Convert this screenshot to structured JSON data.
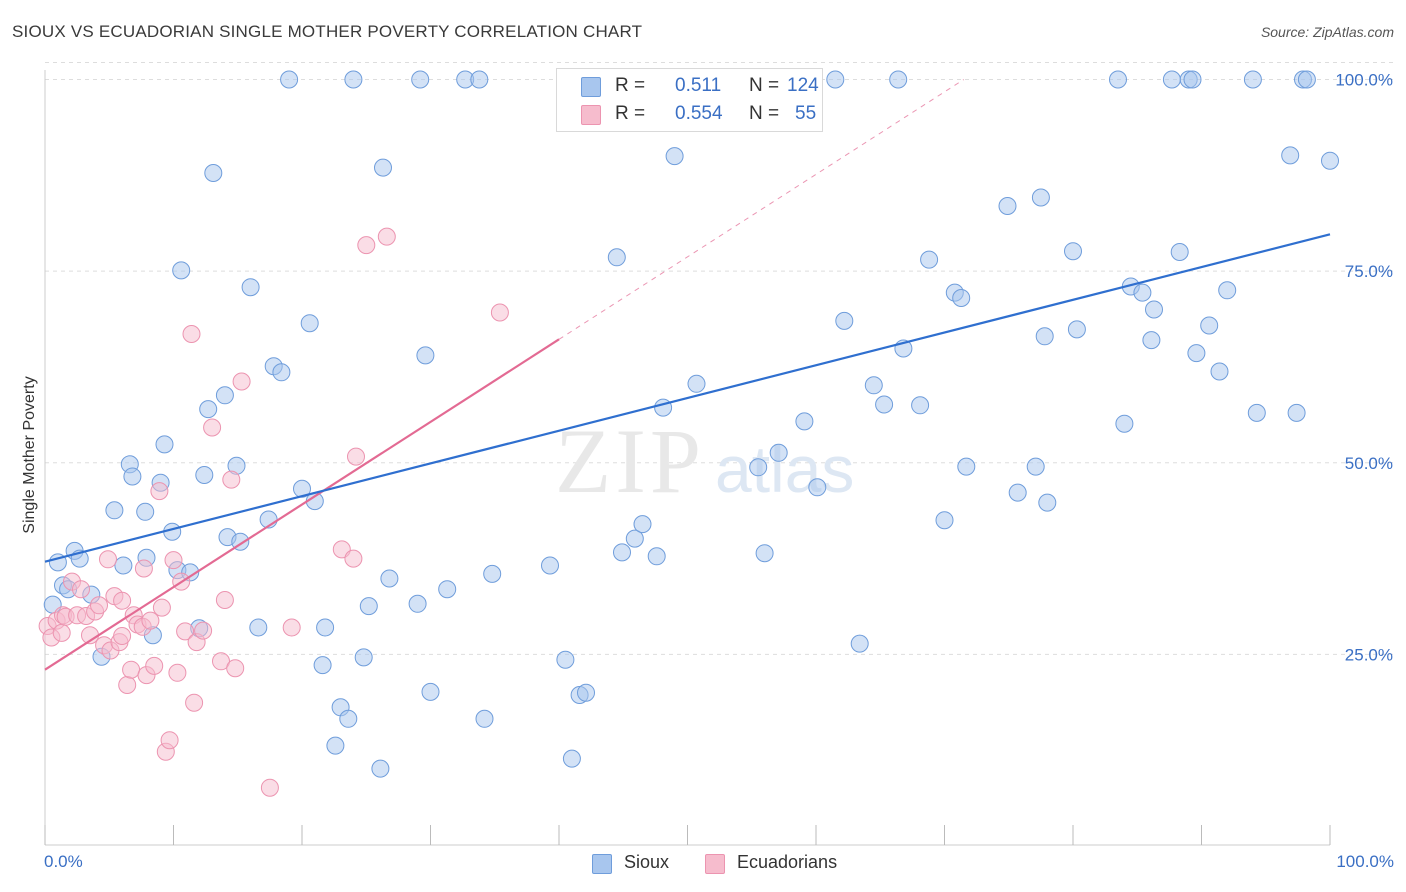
{
  "title": "SIOUX VS ECUADORIAN SINGLE MOTHER POVERTY CORRELATION CHART",
  "source": "Source: ZipAtlas.com",
  "watermark": {
    "zip": "ZIP",
    "atlas": "atlas"
  },
  "colors": {
    "sioux_fill": "#a8c6ee",
    "sioux_stroke": "#6f9ddb",
    "sioux_line": "#2f6fcf",
    "ecu_fill": "#f6bccd",
    "ecu_stroke": "#ec94b0",
    "ecu_line": "#e36a93",
    "tick_text": "#3a6fc4",
    "grid": "#dddddd"
  },
  "legend": {
    "rows": [
      {
        "r_label": "R =",
        "r_value": "0.511",
        "n_label": "N =",
        "n_value": "124",
        "color": "#a8c6ee"
      },
      {
        "r_label": "R =",
        "r_value": "0.554",
        "n_label": "N =",
        "n_value": "55",
        "color": "#f6bccd"
      }
    ]
  },
  "bottom_legend": [
    {
      "label": "Sioux",
      "color": "#a8c6ee"
    },
    {
      "label": "Ecuadorians",
      "color": "#f6bccd"
    }
  ],
  "chart_data": {
    "type": "scatter",
    "title": "SIOUX VS ECUADORIAN SINGLE MOTHER POVERTY CORRELATION CHART",
    "xlabel": "",
    "ylabel": "Single Mother Poverty",
    "xlim": [
      0,
      100
    ],
    "ylim": [
      0,
      103
    ],
    "x_tick_labels": [
      "0.0%",
      "100.0%"
    ],
    "y_ticks": [
      25,
      50,
      75,
      100
    ],
    "y_tick_labels": [
      "25.0%",
      "50.0%",
      "75.0%",
      "100.0%"
    ],
    "grid": true,
    "legend_placement": "top-center",
    "series": [
      {
        "name": "Sioux",
        "r": 0.511,
        "n": 124,
        "trend": {
          "x": [
            0,
            100
          ],
          "y": [
            37.1,
            79.8
          ]
        },
        "points": [
          [
            0.6,
            31.5
          ],
          [
            1.0,
            37.0
          ],
          [
            1.4,
            34.0
          ],
          [
            1.8,
            33.5
          ],
          [
            2.3,
            38.5
          ],
          [
            2.7,
            37.5
          ],
          [
            3.6,
            32.8
          ],
          [
            4.4,
            24.7
          ],
          [
            5.4,
            43.8
          ],
          [
            6.1,
            36.6
          ],
          [
            6.6,
            49.8
          ],
          [
            6.8,
            48.2
          ],
          [
            7.8,
            43.6
          ],
          [
            7.9,
            37.6
          ],
          [
            8.4,
            27.5
          ],
          [
            9.0,
            47.4
          ],
          [
            9.3,
            52.4
          ],
          [
            9.9,
            41.0
          ],
          [
            10.3,
            36.0
          ],
          [
            10.6,
            75.1
          ],
          [
            11.3,
            35.7
          ],
          [
            12.0,
            28.4
          ],
          [
            12.4,
            48.4
          ],
          [
            12.7,
            57.0
          ],
          [
            13.1,
            87.8
          ],
          [
            14.0,
            58.8
          ],
          [
            14.2,
            40.3
          ],
          [
            14.9,
            49.6
          ],
          [
            15.2,
            39.7
          ],
          [
            16.0,
            72.9
          ],
          [
            16.6,
            28.5
          ],
          [
            17.4,
            42.6
          ],
          [
            17.8,
            62.6
          ],
          [
            18.4,
            61.8
          ],
          [
            19.0,
            100
          ],
          [
            20.0,
            46.6
          ],
          [
            20.6,
            68.2
          ],
          [
            21.0,
            45.0
          ],
          [
            21.6,
            23.6
          ],
          [
            21.8,
            28.5
          ],
          [
            22.6,
            13.1
          ],
          [
            23.0,
            18.1
          ],
          [
            23.6,
            16.6
          ],
          [
            24.0,
            100
          ],
          [
            24.8,
            24.6
          ],
          [
            25.2,
            31.3
          ],
          [
            26.1,
            10.1
          ],
          [
            26.3,
            88.5
          ],
          [
            26.8,
            34.9
          ],
          [
            29.0,
            31.6
          ],
          [
            29.2,
            100
          ],
          [
            29.6,
            64.0
          ],
          [
            30.0,
            20.1
          ],
          [
            31.3,
            33.5
          ],
          [
            32.7,
            100
          ],
          [
            33.8,
            100
          ],
          [
            34.2,
            16.6
          ],
          [
            34.8,
            35.5
          ],
          [
            39.3,
            36.6
          ],
          [
            40.5,
            24.3
          ],
          [
            41.0,
            11.4
          ],
          [
            41.6,
            19.7
          ],
          [
            42.1,
            20.0
          ],
          [
            44.5,
            76.8
          ],
          [
            44.9,
            38.3
          ],
          [
            45.9,
            40.1
          ],
          [
            46.5,
            42.0
          ],
          [
            47.6,
            37.8
          ],
          [
            48.1,
            57.2
          ],
          [
            48.7,
            100
          ],
          [
            49.0,
            90.0
          ],
          [
            50.7,
            60.3
          ],
          [
            51.2,
            100
          ],
          [
            55.5,
            49.4
          ],
          [
            56.0,
            38.2
          ],
          [
            57.1,
            51.3
          ],
          [
            59.1,
            55.4
          ],
          [
            60.1,
            46.8
          ],
          [
            61.5,
            100
          ],
          [
            62.2,
            68.5
          ],
          [
            63.4,
            26.4
          ],
          [
            64.5,
            60.1
          ],
          [
            65.3,
            57.6
          ],
          [
            66.4,
            100
          ],
          [
            66.8,
            64.9
          ],
          [
            68.1,
            57.5
          ],
          [
            68.8,
            76.5
          ],
          [
            70.0,
            42.5
          ],
          [
            70.8,
            72.2
          ],
          [
            71.3,
            71.5
          ],
          [
            71.7,
            49.5
          ],
          [
            74.9,
            83.5
          ],
          [
            75.7,
            46.1
          ],
          [
            77.1,
            49.5
          ],
          [
            77.5,
            84.6
          ],
          [
            77.8,
            66.5
          ],
          [
            78.0,
            44.8
          ],
          [
            80.0,
            77.6
          ],
          [
            80.3,
            67.4
          ],
          [
            83.5,
            100
          ],
          [
            84.0,
            55.1
          ],
          [
            84.5,
            73.0
          ],
          [
            85.4,
            72.2
          ],
          [
            86.1,
            66.0
          ],
          [
            86.3,
            70.0
          ],
          [
            87.7,
            100
          ],
          [
            88.3,
            77.5
          ],
          [
            89.0,
            100
          ],
          [
            89.3,
            100
          ],
          [
            89.6,
            64.3
          ],
          [
            90.6,
            67.9
          ],
          [
            91.4,
            61.9
          ],
          [
            92.0,
            72.5
          ],
          [
            94.0,
            100
          ],
          [
            94.3,
            56.5
          ],
          [
            96.9,
            90.1
          ],
          [
            97.4,
            56.5
          ],
          [
            97.9,
            100
          ],
          [
            98.2,
            100
          ],
          [
            100.0,
            89.4
          ]
        ]
      },
      {
        "name": "Ecuadorians",
        "r": 0.554,
        "n": 55,
        "trend": {
          "x": [
            0,
            40
          ],
          "y": [
            23.0,
            66.1
          ]
        },
        "trend_dashed": {
          "x": [
            40,
            71.5
          ],
          "y": [
            66.1,
            100
          ]
        },
        "points": [
          [
            0.2,
            28.7
          ],
          [
            0.5,
            27.2
          ],
          [
            0.9,
            29.4
          ],
          [
            1.3,
            27.8
          ],
          [
            1.4,
            30.1
          ],
          [
            1.6,
            29.9
          ],
          [
            2.1,
            34.5
          ],
          [
            2.5,
            30.1
          ],
          [
            2.8,
            33.5
          ],
          [
            3.2,
            30.0
          ],
          [
            3.5,
            27.5
          ],
          [
            3.9,
            30.6
          ],
          [
            4.2,
            31.4
          ],
          [
            4.6,
            26.2
          ],
          [
            4.9,
            37.4
          ],
          [
            5.1,
            25.5
          ],
          [
            5.4,
            32.6
          ],
          [
            5.8,
            26.6
          ],
          [
            6.0,
            27.4
          ],
          [
            6.4,
            21.0
          ],
          [
            6.7,
            23.0
          ],
          [
            6.9,
            30.1
          ],
          [
            7.2,
            28.9
          ],
          [
            7.6,
            28.6
          ],
          [
            7.7,
            36.2
          ],
          [
            7.9,
            22.3
          ],
          [
            8.2,
            29.4
          ],
          [
            8.5,
            23.5
          ],
          [
            8.9,
            46.3
          ],
          [
            9.1,
            31.1
          ],
          [
            9.4,
            12.3
          ],
          [
            9.7,
            13.8
          ],
          [
            10.0,
            37.3
          ],
          [
            10.3,
            22.6
          ],
          [
            10.6,
            34.5
          ],
          [
            10.9,
            28.0
          ],
          [
            11.4,
            66.8
          ],
          [
            11.6,
            18.7
          ],
          [
            11.8,
            26.6
          ],
          [
            12.3,
            28.1
          ],
          [
            13.0,
            54.6
          ],
          [
            13.7,
            24.1
          ],
          [
            14.0,
            32.1
          ],
          [
            14.5,
            47.8
          ],
          [
            14.8,
            23.2
          ],
          [
            15.3,
            60.6
          ],
          [
            17.5,
            7.6
          ],
          [
            19.2,
            28.5
          ],
          [
            23.1,
            38.7
          ],
          [
            24.0,
            37.5
          ],
          [
            24.2,
            50.8
          ],
          [
            25.0,
            78.4
          ],
          [
            26.6,
            79.5
          ],
          [
            35.4,
            69.6
          ],
          [
            6.0,
            32.0
          ]
        ]
      }
    ]
  }
}
